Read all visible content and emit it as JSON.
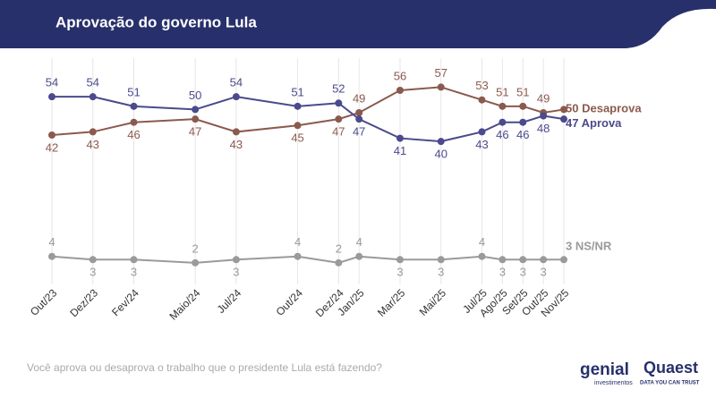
{
  "chart_data": {
    "type": "line",
    "title": "Aprovação do governo Lula",
    "categories": [
      "Out/23",
      "Dez/23",
      "Fev/24",
      "Maio/24",
      "Jul/24",
      "Out/24",
      "Dez/24",
      "Jan/25",
      "Mar/25",
      "Mai/25",
      "Jul/25",
      "Ago/25",
      "Set/25",
      "Out/25",
      "Nov/25"
    ],
    "series": [
      {
        "name": "Desaprova",
        "color": "#8b5a4e",
        "values": [
          42,
          43,
          46,
          47,
          43,
          45,
          47,
          49,
          56,
          57,
          53,
          51,
          51,
          49,
          50
        ]
      },
      {
        "name": "Aprova",
        "color": "#4a4a8c",
        "values": [
          54,
          54,
          51,
          50,
          54,
          51,
          52,
          47,
          41,
          40,
          43,
          46,
          46,
          48,
          47
        ]
      },
      {
        "name": "NS/NR",
        "color": "#9a9a9a",
        "values": [
          4,
          3,
          3,
          2,
          3,
          4,
          2,
          4,
          3,
          3,
          4,
          3,
          3,
          3,
          3
        ]
      }
    ],
    "ylim": [
      0,
      70
    ],
    "grid": true,
    "note": "Você aprova ou desaprova o trabalho que o presidente Lula está fazendo?"
  },
  "logos": {
    "genial": "genial",
    "genial_sub": "investimentos",
    "quaest": "Quaest",
    "quaest_sub": "DATA YOU CAN TRUST"
  }
}
